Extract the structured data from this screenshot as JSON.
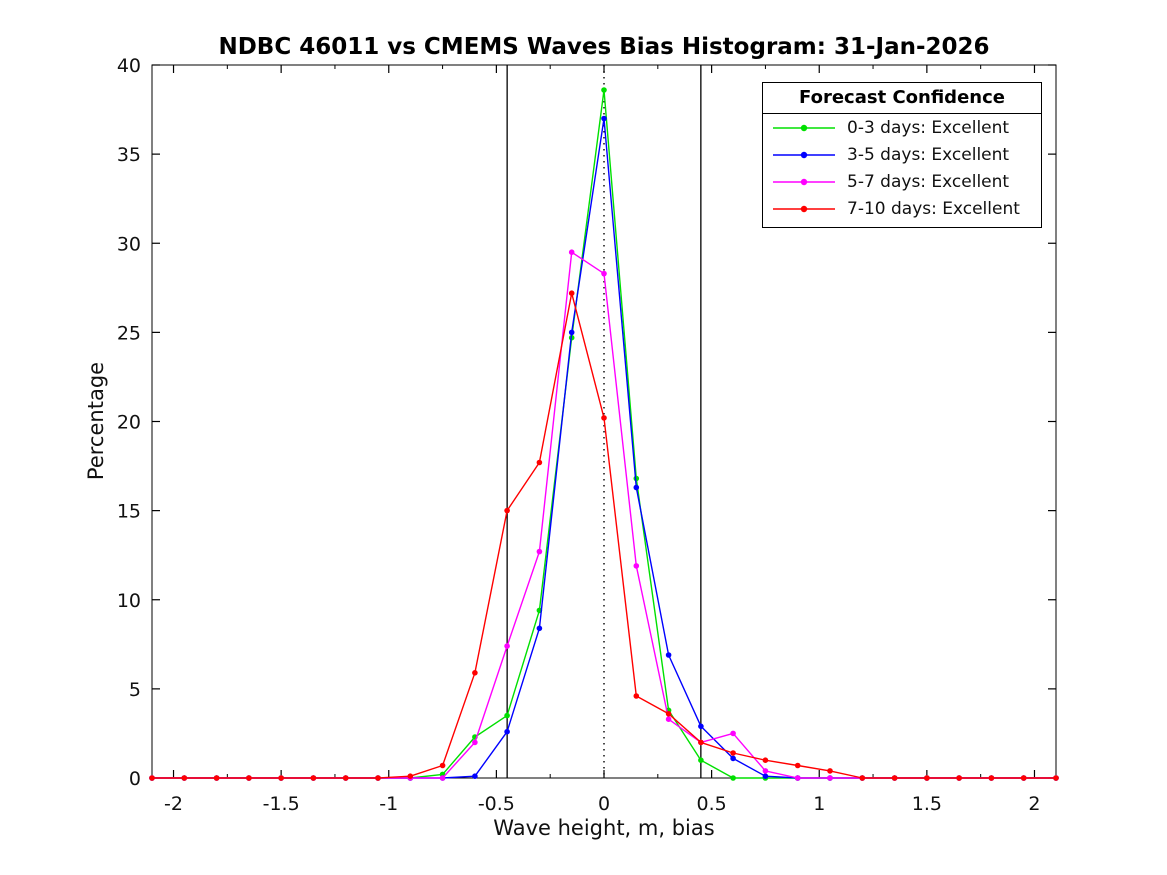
{
  "chart_data": {
    "type": "line",
    "title": "NDBC 46011 vs CMEMS Waves Bias Histogram: 31-Jan-2026",
    "xlabel": "Wave height, m, bias",
    "ylabel": "Percentage",
    "xlim": [
      -2.1,
      2.1
    ],
    "ylim": [
      0,
      40
    ],
    "grid": false,
    "x_major_ticks": [
      -2,
      -1.5,
      -1,
      -0.5,
      0,
      0.5,
      1,
      1.5,
      2
    ],
    "x_tick_labels": [
      "-2",
      "-1.5",
      "-1",
      "-0.5",
      "0",
      "0.5",
      "1",
      "1.5",
      "2"
    ],
    "x_minor_ticks": [
      -1.75,
      -1.25,
      -0.75,
      -0.25,
      0.25,
      0.75,
      1.25,
      1.75
    ],
    "y_ticks": [
      0,
      5,
      10,
      15,
      20,
      25,
      30,
      35,
      40
    ],
    "y_tick_labels": [
      "0",
      "5",
      "10",
      "15",
      "20",
      "25",
      "30",
      "35",
      "40"
    ],
    "reference_lines": {
      "dotted_vertical_x": 0,
      "solid_vertical_x": [
        -0.45,
        0.45
      ],
      "color": "#000000"
    },
    "legend": {
      "title": "Forecast Confidence",
      "position": "top-right"
    },
    "x": [
      -2.1,
      -1.95,
      -1.8,
      -1.65,
      -1.5,
      -1.35,
      -1.2,
      -1.05,
      -0.9,
      -0.75,
      -0.6,
      -0.45,
      -0.3,
      -0.15,
      0,
      0.15,
      0.3,
      0.45,
      0.6,
      0.75,
      0.9,
      1.05,
      1.2,
      1.35,
      1.5,
      1.65,
      1.8,
      1.95,
      2.1
    ],
    "series": [
      {
        "name": "0-3 days: Excellent",
        "color": "#00E000",
        "values": [
          0,
          0,
          0,
          0,
          0,
          0,
          0,
          0,
          0,
          0.2,
          2.3,
          3.5,
          9.4,
          24.7,
          38.6,
          16.8,
          3.8,
          1.0,
          0,
          0,
          0,
          0,
          0,
          0,
          0,
          0,
          0,
          0,
          0
        ]
      },
      {
        "name": "3-5 days: Excellent",
        "color": "#0000FF",
        "values": [
          0,
          0,
          0,
          0,
          0,
          0,
          0,
          0,
          0,
          0,
          0.1,
          2.6,
          8.4,
          25.0,
          37.0,
          16.3,
          6.9,
          2.9,
          1.1,
          0.1,
          0,
          0,
          0,
          0,
          0,
          0,
          0,
          0,
          0
        ]
      },
      {
        "name": "5-7 days: Excellent",
        "color": "#FF00FF",
        "values": [
          0,
          0,
          0,
          0,
          0,
          0,
          0,
          0,
          0,
          0,
          2.0,
          7.4,
          12.7,
          29.5,
          28.3,
          11.9,
          3.3,
          2.0,
          2.5,
          0.4,
          0,
          0,
          0,
          0,
          0,
          0,
          0,
          0,
          0
        ]
      },
      {
        "name": "7-10 days: Excellent",
        "color": "#FF0000",
        "values": [
          0,
          0,
          0,
          0,
          0,
          0,
          0,
          0,
          0.1,
          0.7,
          5.9,
          15.0,
          17.7,
          27.2,
          20.2,
          4.6,
          3.6,
          2.0,
          1.4,
          1.0,
          0.7,
          0.4,
          0,
          0,
          0,
          0,
          0,
          0,
          0
        ]
      }
    ]
  }
}
